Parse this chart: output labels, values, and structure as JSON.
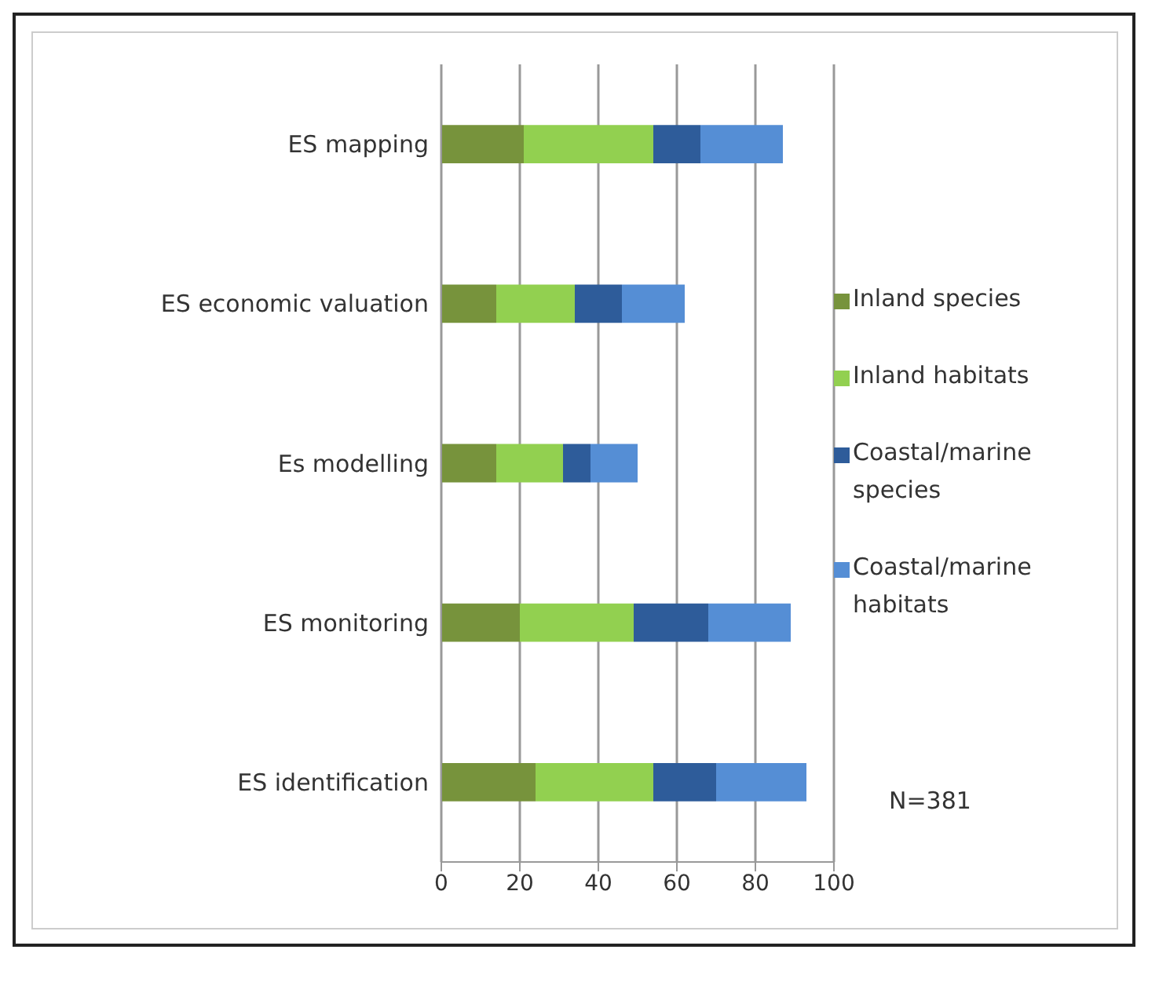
{
  "chart_data": {
    "type": "bar",
    "orientation": "horizontal",
    "stacked": true,
    "categories": [
      "ES mapping",
      "ES economic valuation",
      "Es modelling",
      "ES monitoring",
      "ES identification"
    ],
    "series": [
      {
        "name": "Inland species",
        "color": "#77933c",
        "values": [
          21,
          14,
          14,
          20,
          24
        ]
      },
      {
        "name": "Inland habitats",
        "color": "#92d050",
        "values": [
          33,
          20,
          17,
          29,
          30
        ]
      },
      {
        "name": "Coastal/marine species",
        "color": "#2e5c9a",
        "values": [
          12,
          12,
          7,
          19,
          16
        ]
      },
      {
        "name": "Coastal/marine habitats",
        "color": "#558ed5",
        "values": [
          21,
          16,
          12,
          21,
          23
        ]
      }
    ],
    "xlim": [
      0,
      100
    ],
    "xticks": [
      0,
      20,
      40,
      60,
      80,
      100
    ],
    "grid": "x",
    "legend": "right",
    "annotations": [
      "N=381"
    ]
  }
}
